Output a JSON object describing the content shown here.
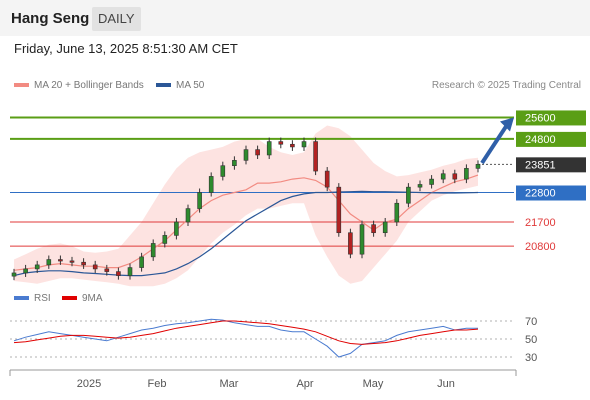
{
  "header": {
    "title": "Hang Seng",
    "interval": "DAILY"
  },
  "timestamp": "Friday, June 13, 2025 8:51:30 AM CET",
  "legend": {
    "bollinger": {
      "label": "MA 20 + Bollinger Bands",
      "color": "#f28b82"
    },
    "ma50": {
      "label": "MA 50",
      "color": "#2b5797"
    }
  },
  "credit": "Research © 2025 Trading Central",
  "rsi_legend": {
    "rsi": "RSI",
    "ma9": "9MA"
  },
  "chart_data": [
    {
      "type": "candlestick",
      "title": "",
      "x_labels": [
        "2025",
        "Feb",
        "Mar",
        "Apr",
        "May",
        "Jun"
      ],
      "ylim": [
        19350,
        26400
      ],
      "levels": [
        {
          "value": 25600,
          "label": "25600",
          "kind": "resistance",
          "color": "#5a9e15"
        },
        {
          "value": 24800,
          "label": "24800",
          "kind": "resistance",
          "color": "#5a9e15"
        },
        {
          "value": 23851,
          "label": "23851",
          "kind": "last",
          "color": "#333333"
        },
        {
          "value": 22800,
          "label": "22800",
          "kind": "pivot",
          "color": "#2f6fc4"
        },
        {
          "value": 21700,
          "label": "21700",
          "kind": "support",
          "color": "#e03a3a"
        },
        {
          "value": 20800,
          "label": "20800",
          "kind": "support",
          "color": "#e03a3a"
        }
      ],
      "series": [
        {
          "name": "MA 20 + Bollinger Bands",
          "ma20": [
            19900,
            19950,
            20000,
            20100,
            20150,
            20100,
            20050,
            20050,
            20000,
            20000,
            20150,
            20400,
            20700,
            21000,
            21400,
            21800,
            22200,
            22500,
            22700,
            22800,
            22900,
            23150,
            23150,
            23200,
            23300,
            23350,
            23250,
            23000,
            22500,
            22000,
            21700,
            21400,
            21700,
            21800,
            22200,
            22500,
            22800,
            23000,
            23200,
            23300,
            23450
          ],
          "upper": [
            20300,
            20500,
            20700,
            20850,
            20900,
            20800,
            20600,
            20550,
            20600,
            20700,
            21200,
            21700,
            22400,
            23100,
            23700,
            24100,
            24300,
            24400,
            24500,
            24700,
            24800,
            24800,
            24500,
            24300,
            24200,
            24300,
            25000,
            25300,
            25200,
            24900,
            24400,
            23900,
            23600,
            23400,
            23450,
            23550,
            23650,
            23800,
            23900,
            24050,
            24100
          ],
          "lower": [
            19500,
            19450,
            19400,
            19500,
            19600,
            19600,
            19550,
            19500,
            19450,
            19400,
            19300,
            19300,
            19300,
            19400,
            19600,
            19900,
            20400,
            20900,
            21300,
            21600,
            21950,
            22200,
            22200,
            22300,
            22400,
            22400,
            21200,
            20400,
            19700,
            19400,
            19500,
            20000,
            20500,
            21000,
            21700,
            22100,
            22500,
            22700,
            22850,
            22950,
            23050
          ]
        },
        {
          "name": "MA 50",
          "values": [
            19700,
            19800,
            19850,
            19880,
            19880,
            19850,
            19800,
            19780,
            19750,
            19720,
            19700,
            19700,
            19750,
            19800,
            19950,
            20150,
            20400,
            20700,
            21050,
            21400,
            21750,
            22000,
            22250,
            22500,
            22650,
            22750,
            22800,
            22800,
            22820,
            22830,
            22840,
            22830,
            22830,
            22820,
            22810,
            22800,
            22790,
            22780,
            22780,
            22790,
            22800
          ]
        },
        {
          "name": "price",
          "close": [
            19800,
            19950,
            20100,
            20300,
            20250,
            20200,
            20100,
            19950,
            19850,
            19700,
            20000,
            20400,
            20900,
            21200,
            21700,
            22200,
            22800,
            23400,
            23800,
            24000,
            24400,
            24200,
            24700,
            24600,
            24500,
            24700,
            23600,
            23000,
            21300,
            20500,
            21600,
            21300,
            21700,
            22400,
            23000,
            23100,
            23300,
            23500,
            23300,
            23700,
            23851
          ]
        }
      ]
    },
    {
      "type": "line",
      "title": "",
      "ylim": [
        20,
        80
      ],
      "y_ticks": [
        70,
        50,
        30
      ],
      "series": [
        {
          "name": "RSI",
          "values": [
            48,
            52,
            55,
            58,
            56,
            54,
            52,
            50,
            48,
            52,
            56,
            60,
            62,
            65,
            67,
            68,
            70,
            72,
            71,
            68,
            66,
            64,
            64,
            60,
            58,
            58,
            50,
            42,
            30,
            34,
            44,
            46,
            48,
            54,
            58,
            60,
            62,
            64,
            60,
            62,
            62
          ]
        },
        {
          "name": "9MA",
          "values": [
            46,
            47,
            49,
            51,
            53,
            54,
            54,
            53,
            52,
            51,
            52,
            54,
            56,
            59,
            62,
            64,
            66,
            68,
            70,
            70,
            69,
            68,
            67,
            65,
            63,
            61,
            58,
            53,
            48,
            45,
            44,
            45,
            46,
            48,
            51,
            54,
            56,
            58,
            60,
            60,
            61
          ]
        }
      ]
    }
  ]
}
